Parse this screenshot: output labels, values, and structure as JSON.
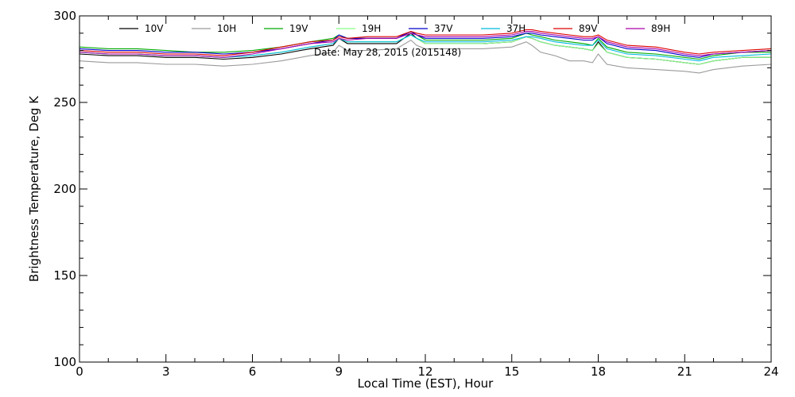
{
  "chart_data": {
    "type": "line",
    "xlabel": "Local Time (EST), Hour",
    "ylabel": "Brightness Temperature, Deg K",
    "annotation": "Date: May 28, 2015 (2015148)",
    "xlim": [
      0,
      24
    ],
    "ylim": [
      100,
      300
    ],
    "xticks": [
      0,
      3,
      6,
      9,
      12,
      15,
      18,
      21,
      24
    ],
    "yticks": [
      100,
      150,
      200,
      250,
      300
    ],
    "grid": false,
    "legend_position": "top",
    "x": [
      0,
      1,
      2,
      3,
      4,
      5,
      6,
      7,
      8,
      8.8,
      9,
      9.3,
      10,
      11,
      11.5,
      11.7,
      12,
      13,
      14,
      15,
      15.5,
      15.7,
      16,
      16.5,
      17,
      17.5,
      17.8,
      18,
      18.3,
      19,
      20,
      21,
      21.5,
      22,
      23,
      24
    ],
    "series": [
      {
        "name": "10V",
        "color": "#000000",
        "values": [
          278,
          277,
          277,
          276,
          276,
          275,
          276,
          278,
          281,
          283,
          287,
          284,
          284,
          284,
          290,
          287,
          284,
          284,
          284,
          285,
          288,
          287,
          285,
          283,
          282,
          281,
          280,
          285,
          279,
          276,
          275,
          273,
          272,
          274,
          276,
          276
        ]
      },
      {
        "name": "10H",
        "color": "#9a9a9a",
        "values": [
          274,
          273,
          273,
          272,
          272,
          271,
          272,
          274,
          277,
          279,
          283,
          280,
          280,
          281,
          286,
          283,
          281,
          281,
          281,
          282,
          285,
          283,
          279,
          277,
          274,
          274,
          273,
          278,
          272,
          270,
          269,
          268,
          267,
          269,
          271,
          272
        ]
      },
      {
        "name": "19V",
        "color": "#00aa00",
        "values": [
          282,
          281,
          281,
          280,
          279,
          279,
          280,
          282,
          285,
          287,
          289,
          287,
          287,
          287,
          291,
          289,
          286,
          286,
          286,
          287,
          290,
          289,
          288,
          286,
          285,
          284,
          283,
          287,
          282,
          279,
          278,
          276,
          275,
          277,
          279,
          279
        ]
      },
      {
        "name": "19H",
        "color": "#88ff88",
        "values": [
          279,
          278,
          278,
          277,
          277,
          276,
          277,
          279,
          282,
          284,
          287,
          285,
          285,
          285,
          289,
          287,
          284,
          284,
          284,
          285,
          288,
          287,
          285,
          283,
          282,
          281,
          280,
          284,
          279,
          276,
          275,
          273,
          272,
          274,
          276,
          276
        ]
      },
      {
        "name": "37V",
        "color": "#0000cc",
        "values": [
          281,
          280,
          280,
          279,
          279,
          278,
          279,
          281,
          284,
          286,
          289,
          287,
          287,
          287,
          291,
          289,
          287,
          287,
          287,
          288,
          290,
          290,
          289,
          288,
          287,
          286,
          286,
          288,
          284,
          281,
          280,
          277,
          276,
          278,
          279,
          280
        ]
      },
      {
        "name": "37H",
        "color": "#00bbdd",
        "values": [
          279,
          278,
          278,
          277,
          277,
          276,
          277,
          279,
          282,
          284,
          287,
          285,
          285,
          285,
          289,
          287,
          285,
          285,
          285,
          286,
          288,
          288,
          287,
          285,
          284,
          283,
          283,
          286,
          281,
          278,
          277,
          275,
          274,
          276,
          277,
          278
        ]
      },
      {
        "name": "89V",
        "color": "#dd0000",
        "values": [
          280,
          279,
          279,
          278,
          278,
          277,
          279,
          282,
          285,
          286,
          288,
          287,
          288,
          288,
          291,
          290,
          289,
          289,
          289,
          290,
          292,
          292,
          291,
          290,
          289,
          288,
          288,
          289,
          286,
          283,
          282,
          279,
          278,
          279,
          280,
          281
        ]
      },
      {
        "name": "89H",
        "color": "#aa00aa",
        "values": [
          279,
          278,
          278,
          277,
          277,
          276,
          278,
          281,
          284,
          285,
          287,
          286,
          287,
          287,
          290,
          289,
          288,
          288,
          288,
          289,
          291,
          291,
          290,
          289,
          288,
          287,
          287,
          288,
          285,
          282,
          281,
          278,
          277,
          278,
          279,
          280
        ]
      }
    ]
  }
}
